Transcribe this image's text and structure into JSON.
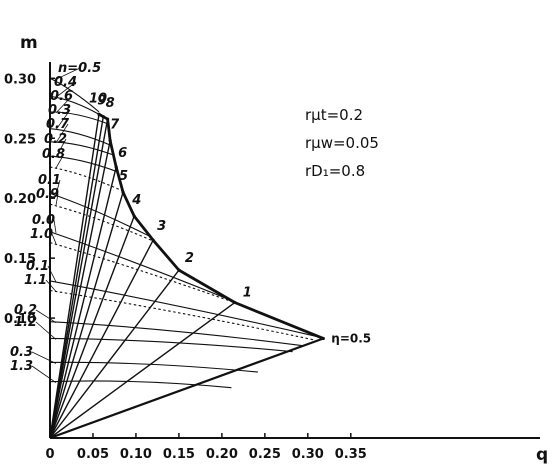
{
  "chart_data": {
    "type": "line",
    "title": "",
    "xlabel": "q",
    "ylabel": "m",
    "xlim": [
      0,
      0.4
    ],
    "ylim": [
      0,
      0.32
    ],
    "xticks": [
      {
        "value": 0,
        "label": "0"
      },
      {
        "value": 0.05,
        "label": "0.05"
      },
      {
        "value": 0.1,
        "label": "0.10"
      },
      {
        "value": 0.15,
        "label": "0.15"
      },
      {
        "value": 0.2,
        "label": "0.20"
      },
      {
        "value": 0.25,
        "label": "0.25"
      },
      {
        "value": 0.3,
        "label": "0.30"
      },
      {
        "value": 0.35,
        "label": "0.35"
      }
    ],
    "yticks": [
      {
        "value": 0.1,
        "label": "0.10"
      },
      {
        "value": 0.15,
        "label": "0.15"
      },
      {
        "value": 0.2,
        "label": "0.20"
      },
      {
        "value": 0.25,
        "label": "0.25"
      },
      {
        "value": 0.3,
        "label": "0.30"
      }
    ],
    "parameters": [
      "rμt=0.2",
      "rμw=0.05",
      "rD₁=0.8"
    ],
    "boundary": [
      {
        "label": "η=0.5",
        "q": 0.318,
        "m": 0.083
      },
      {
        "label": "1",
        "q": 0.215,
        "m": 0.113
      },
      {
        "label": "2",
        "q": 0.15,
        "m": 0.14
      },
      {
        "label": "3",
        "q": 0.12,
        "m": 0.165
      },
      {
        "label": "4",
        "q": 0.098,
        "m": 0.185
      },
      {
        "label": "5",
        "q": 0.085,
        "m": 0.205
      },
      {
        "label": "6",
        "q": 0.077,
        "m": 0.226
      },
      {
        "label": "7",
        "q": 0.07,
        "m": 0.248
      },
      {
        "label": "8",
        "q": 0.067,
        "m": 0.266
      },
      {
        "label": "9",
        "q": 0.062,
        "m": 0.268
      },
      {
        "label": "10",
        "q": 0.057,
        "m": 0.27
      }
    ],
    "n_curves": [
      {
        "label": "n=0.5",
        "m_at_axis": 0.3,
        "m_at_boundary": 0.272,
        "curve_type": "solid"
      },
      {
        "label": "0.4",
        "m_at_axis": 0.285,
        "m_at_boundary": 0.27,
        "curve_type": "solid"
      },
      {
        "label": "0.6",
        "m_at_axis": 0.272,
        "m_at_boundary": 0.262,
        "curve_type": "solid"
      },
      {
        "label": "0.3",
        "m_at_axis": 0.258,
        "m_at_boundary": 0.244,
        "curve_type": "solid"
      },
      {
        "label": "0.7",
        "m_at_axis": 0.247,
        "m_at_boundary": 0.236,
        "curve_type": "solid"
      },
      {
        "label": "0.2",
        "m_at_axis": 0.235,
        "m_at_boundary": 0.222,
        "curve_type": "solid"
      },
      {
        "label": "0.8",
        "m_at_axis": 0.226,
        "m_at_boundary": 0.206,
        "curve_type": "dashed"
      },
      {
        "label": "0.1",
        "m_at_axis": 0.204,
        "m_at_boundary": 0.168,
        "curve_type": "solid"
      },
      {
        "label": "0.9",
        "m_at_axis": 0.195,
        "m_at_boundary": 0.164,
        "curve_type": "dashed"
      },
      {
        "label": "0.0",
        "m_at_axis": 0.172,
        "m_at_boundary": 0.115,
        "curve_type": "solid"
      },
      {
        "label": "1.0",
        "m_at_axis": 0.163,
        "m_at_boundary": 0.112,
        "curve_type": "dashed"
      },
      {
        "label": "0.1",
        "m_at_axis": 0.131,
        "m_at_boundary": 0.084,
        "curve_type": "solid"
      },
      {
        "label": "1.1",
        "m_at_axis": 0.123,
        "m_at_boundary": 0.082,
        "curve_type": "dashed"
      },
      {
        "label": "0.2",
        "m_at_axis": 0.097,
        "m_at_boundary": 0.077,
        "curve_type": "solid"
      },
      {
        "label": "1.2",
        "m_at_axis": 0.083,
        "m_at_boundary": 0.072,
        "curve_type": "solid"
      },
      {
        "label": "0.3",
        "m_at_axis": 0.063,
        "m_at_boundary": 0.055,
        "curve_type": "solid"
      },
      {
        "label": "1.3",
        "m_at_axis": 0.047,
        "m_at_boundary": 0.042,
        "curve_type": "solid"
      }
    ]
  }
}
